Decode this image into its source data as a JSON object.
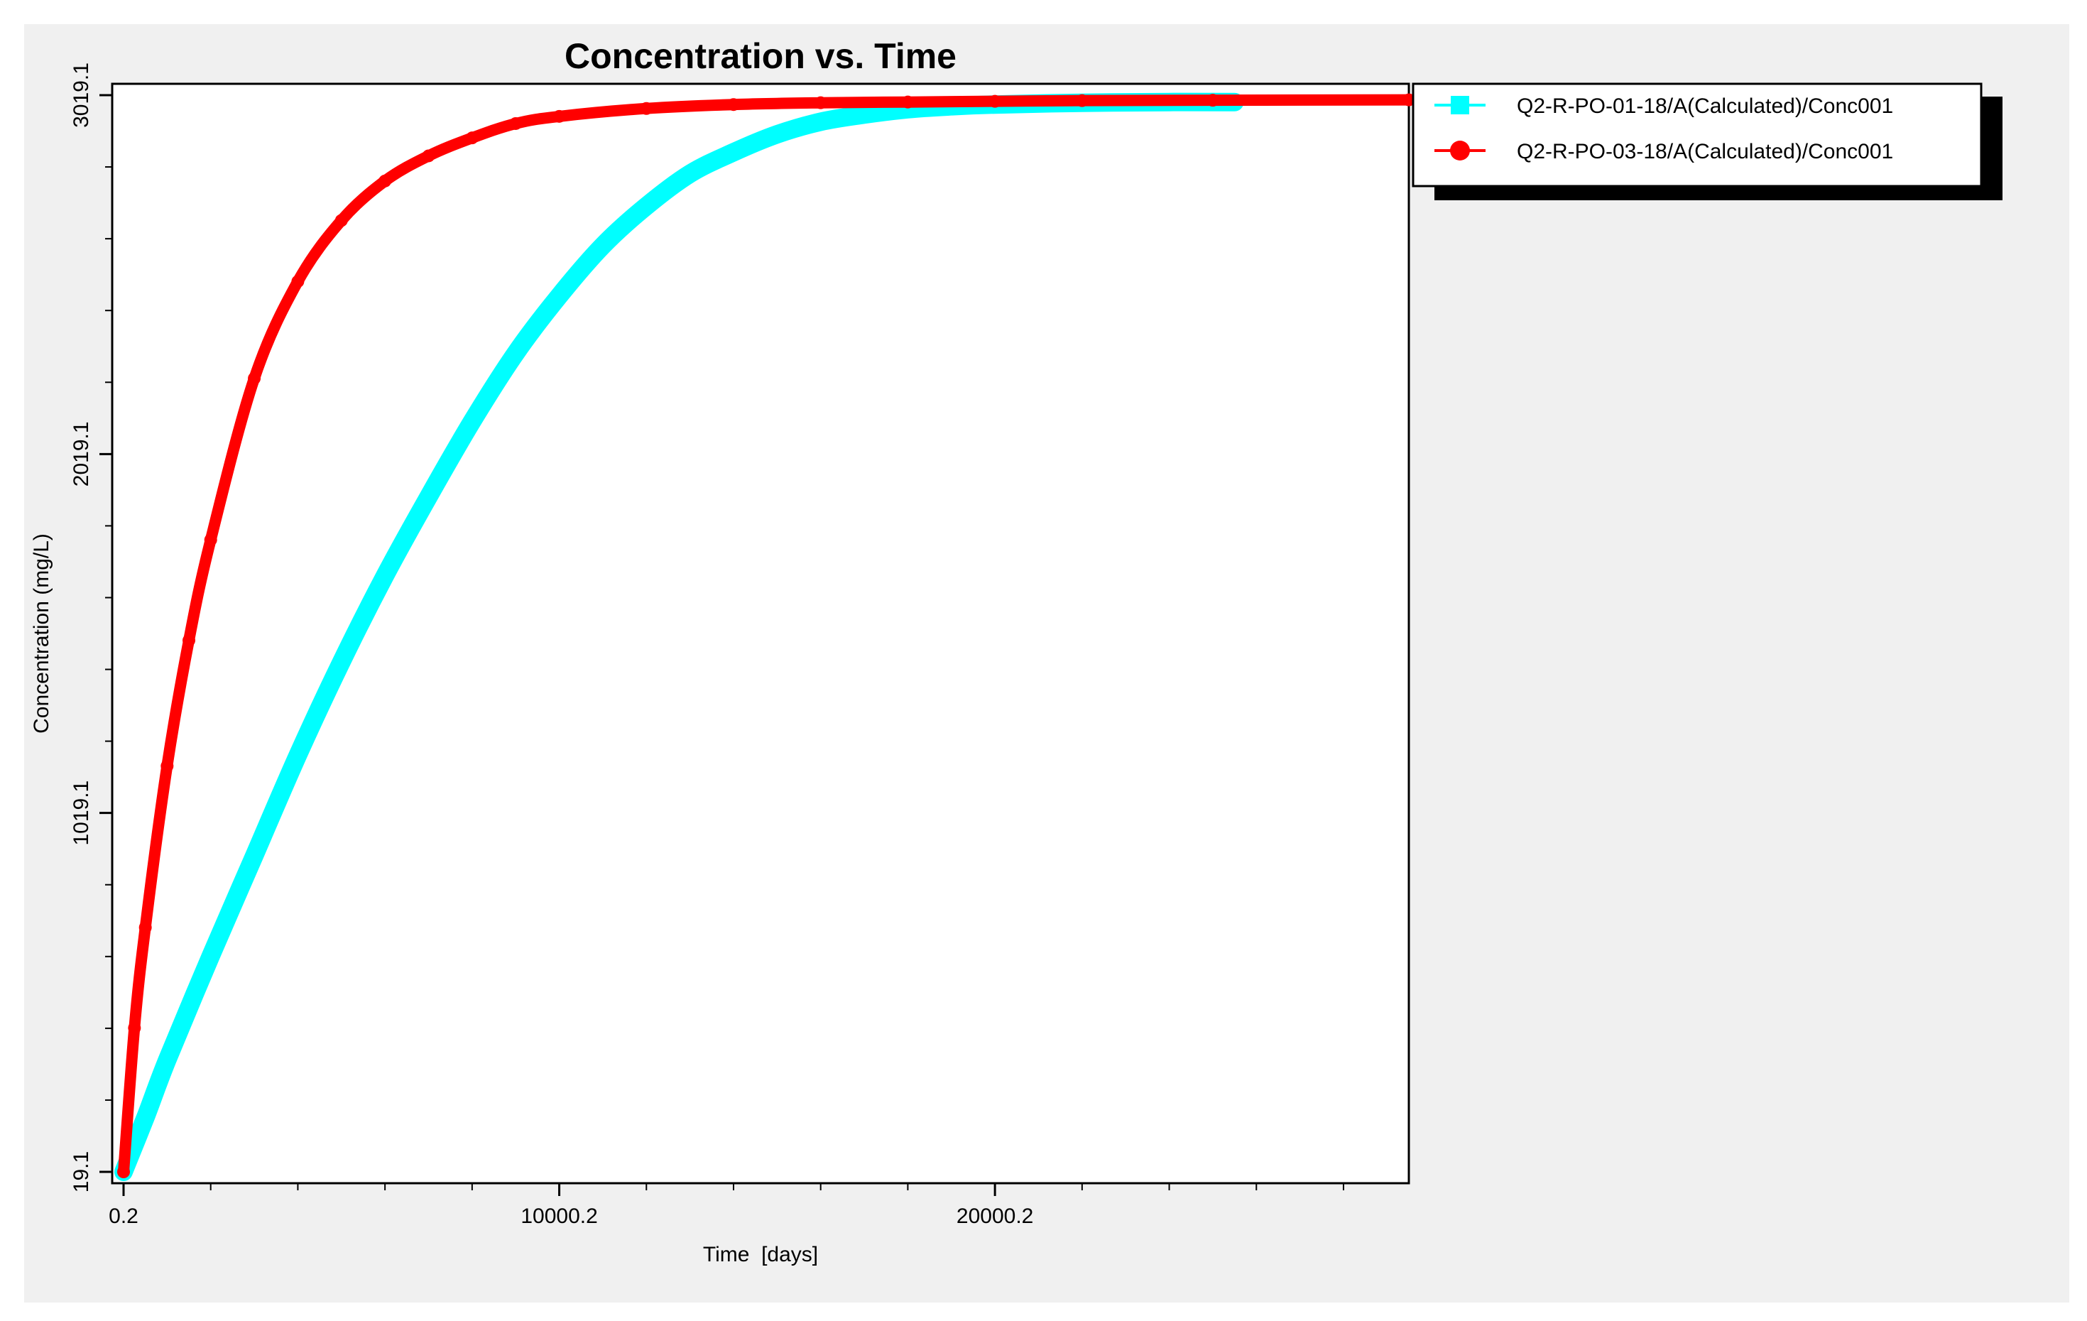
{
  "chart_data": {
    "type": "line",
    "title": "Concentration vs. Time",
    "xlabel": "Time  [days]",
    "ylabel": "Concentration (mg/L)",
    "xlim": [
      0.2,
      29500
    ],
    "ylim": [
      19.1,
      3019.1
    ],
    "x_ticks": [
      0.2,
      10000.2,
      20000.2
    ],
    "x_tick_labels": [
      "0.2",
      "10000.2",
      "20000.2"
    ],
    "y_ticks": [
      19.1,
      1019.1,
      2019.1,
      3019.1
    ],
    "y_tick_labels": [
      "19.1",
      "1019.1",
      "2019.1",
      "3019.1"
    ],
    "grid": false,
    "legend_position": "right-top",
    "series": [
      {
        "name": "Q2-R-PO-01-18/A(Calculated)/Conc001",
        "color": "#00ffff",
        "marker": "square",
        "x": [
          0.2,
          500,
          1000,
          2000,
          3000,
          4000,
          5000,
          6000,
          7000,
          8000,
          9000,
          10000,
          11000,
          12000,
          13000,
          14000,
          15000,
          16000,
          17000,
          18000,
          19000,
          20000,
          22000,
          24000,
          25500
        ],
        "y": [
          19.1,
          170,
          330,
          620,
          900,
          1180,
          1440,
          1680,
          1900,
          2110,
          2300,
          2460,
          2600,
          2710,
          2800,
          2860,
          2910,
          2945,
          2965,
          2980,
          2988,
          2993,
          2998,
          3000,
          3000
        ]
      },
      {
        "name": "Q2-R-PO-03-18/A(Calculated)/Conc001",
        "color": "#ff0000",
        "marker": "circle",
        "x": [
          0.2,
          250,
          500,
          1000,
          1500,
          2000,
          3000,
          4000,
          5000,
          6000,
          7000,
          8000,
          9000,
          10000,
          12000,
          14000,
          16000,
          18000,
          20000,
          22000,
          25000,
          29500
        ],
        "y": [
          19.1,
          420,
          700,
          1150,
          1500,
          1780,
          2230,
          2500,
          2670,
          2780,
          2850,
          2900,
          2940,
          2960,
          2982,
          2993,
          2998,
          3000,
          3002,
          3004,
          3005,
          3006
        ]
      }
    ]
  }
}
